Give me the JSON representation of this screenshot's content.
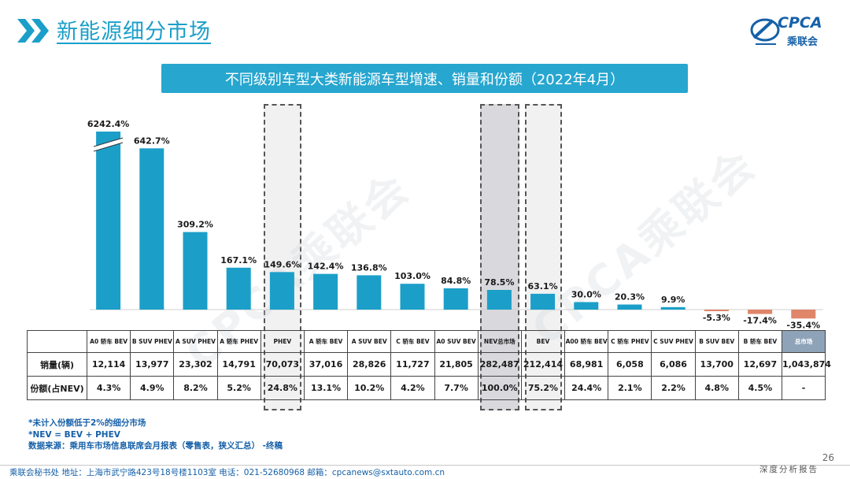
{
  "header": {
    "section_title": "新能源细分市场",
    "logo_text": "CPCA",
    "logo_sub": "乘联会"
  },
  "banner_title": "不同级别车型大类新能源车型增速、销量和份额（2022年4月）",
  "watermark": "CPCA乘联会",
  "chart_data": {
    "type": "bar",
    "title": "不同级别车型大类新能源车型增速、销量和份额（2022年4月）",
    "categories": [
      "A0 轿车 BEV",
      "B SUV PHEV",
      "A SUV PHEV",
      "A 轿车 PHEV",
      "PHEV",
      "A 轿车 BEV",
      "A SUV BEV",
      "C 轿车 BEV",
      "A0 SUV BEV",
      "NEV总市场",
      "BEV",
      "A00 轿车 BEV",
      "C 轿车 PHEV",
      "C SUV PHEV",
      "B SUV BEV",
      "B 轿车 BEV",
      "总市场"
    ],
    "values": [
      6242.4,
      642.7,
      309.2,
      167.1,
      149.6,
      142.4,
      136.8,
      103.0,
      84.8,
      78.5,
      63.1,
      30.0,
      20.3,
      9.9,
      -5.3,
      -17.4,
      -35.4
    ],
    "value_labels": [
      "6242.4%",
      "642.7%",
      "309.2%",
      "167.1%",
      "149.6%",
      "142.4%",
      "136.8%",
      "103.0%",
      "84.8%",
      "78.5%",
      "63.1%",
      "30.0%",
      "20.3%",
      "9.9%",
      "-5.3%",
      "-17.4%",
      "-35.4%"
    ],
    "axis_break_on_first_bar": true,
    "highlighted": [
      "PHEV",
      "NEV总市场",
      "BEV"
    ],
    "colors": {
      "positive": "#1b9fc9",
      "negative": "#e0866a",
      "total_header": "#8fa3b8",
      "brand": "#1560a8"
    },
    "table": {
      "row_labels": [
        "销量(辆)",
        "份额(占NEV)"
      ],
      "sales": [
        "12,114",
        "13,977",
        "23,302",
        "14,791",
        "70,073",
        "37,016",
        "28,826",
        "11,727",
        "21,805",
        "282,487",
        "212,414",
        "68,981",
        "6,058",
        "6,086",
        "13,700",
        "12,697",
        "1,043,874"
      ],
      "share": [
        "4.3%",
        "4.9%",
        "8.2%",
        "5.2%",
        "24.8%",
        "13.1%",
        "10.2%",
        "4.2%",
        "7.7%",
        "100.0%",
        "75.2%",
        "24.4%",
        "2.1%",
        "2.2%",
        "4.8%",
        "4.5%",
        "-"
      ]
    }
  },
  "notes": [
    "*未计入份额低于2%的细分市场",
    "*NEV = BEV + PHEV",
    "数据来源：乘用车市场信息联席会月报表（零售表，狭义汇总） -终稿"
  ],
  "footer": {
    "left": "乘联会秘书处   地址：上海市武宁路423号18号楼1103室  电话：021-52680968   邮箱：cpcanews@sxtauto.com.cn",
    "right": "深度分析报告",
    "page": "26"
  }
}
